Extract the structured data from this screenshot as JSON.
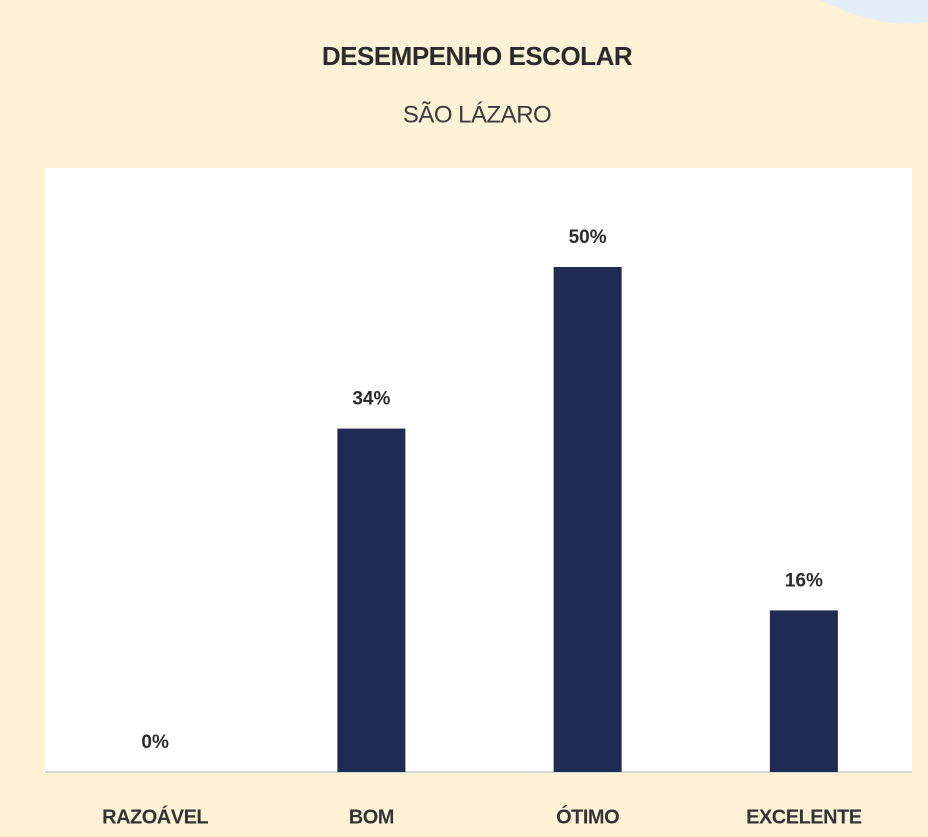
{
  "chart_data": {
    "type": "bar",
    "title": "DESEMPENHO ESCOLAR",
    "subtitle": "SÃO LÁZARO",
    "categories": [
      "RAZOÁVEL",
      "BOM",
      "ÓTIMO",
      "EXCELENTE"
    ],
    "values": [
      0,
      34,
      50,
      16
    ],
    "value_labels": [
      "0%",
      "34%",
      "50%",
      "16%"
    ],
    "color": "#1f2b52"
  }
}
